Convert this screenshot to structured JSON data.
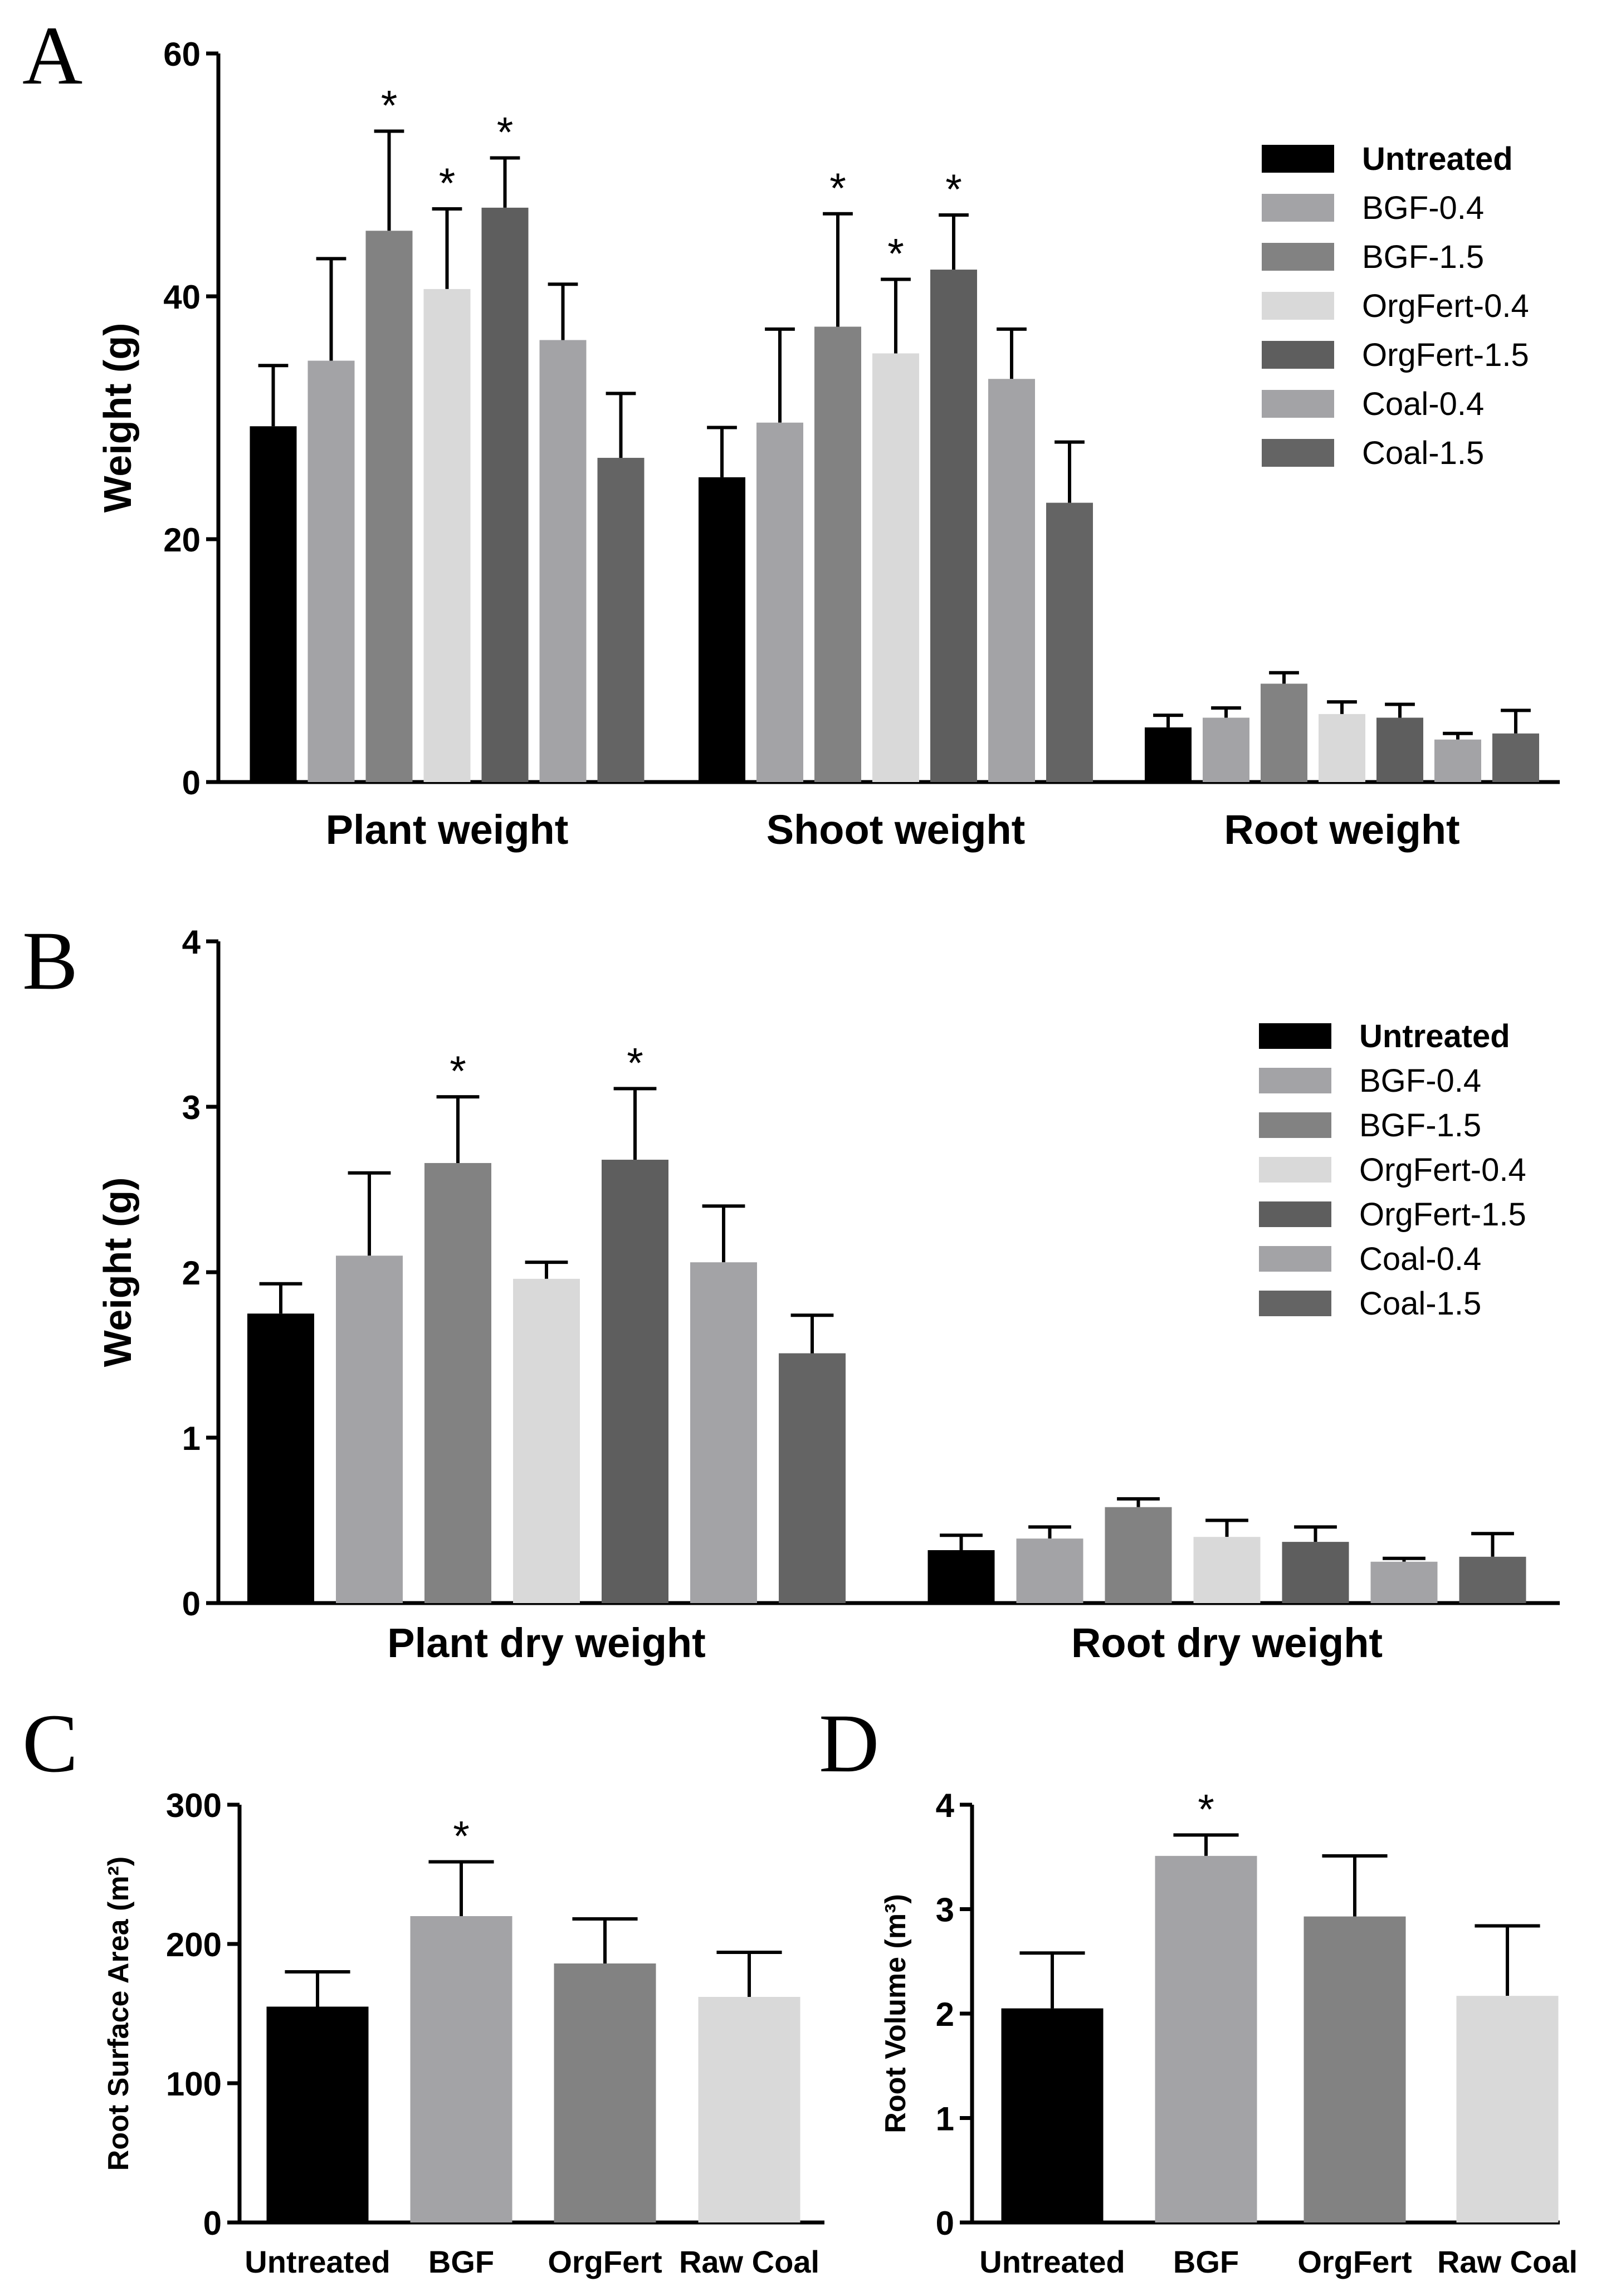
{
  "colors": {
    "Untreated": "#000000",
    "BGF-0.4": "#a3a3a6",
    "BGF-1.5": "#828282",
    "OrgFert-0.4": "#d9d9d9",
    "OrgFert-1.5": "#5e5e5e",
    "Coal-0.4": "#a3a3a6",
    "Coal-1.5": "#646464",
    "BGF": "#a3a3a6",
    "OrgFert": "#828282",
    "Raw Coal": "#d9d9d9"
  },
  "chart_data": [
    {
      "panel": "A",
      "type": "bar",
      "ylabel": "Weight (g)",
      "ylim": [
        0,
        60
      ],
      "yticks": [
        0,
        20,
        40,
        60
      ],
      "categories": [
        "Plant weight",
        "Shoot weight",
        "Root weight"
      ],
      "legend": [
        "Untreated",
        "BGF-0.4",
        "BGF-1.5",
        "OrgFert-0.4",
        "OrgFert-1.5",
        "Coal-0.4",
        "Coal-1.5"
      ],
      "legend_bold": [
        "Untreated"
      ],
      "legend_position": "top-right",
      "grid": false,
      "series": [
        {
          "name": "Untreated",
          "values": [
            29.3,
            25.1,
            4.5
          ],
          "errors": [
            5.0,
            4.1,
            1.0
          ],
          "significant": [
            false,
            false,
            false
          ]
        },
        {
          "name": "BGF-0.4",
          "values": [
            34.7,
            29.6,
            5.3
          ],
          "errors": [
            8.4,
            7.7,
            0.8
          ],
          "significant": [
            false,
            false,
            false
          ]
        },
        {
          "name": "BGF-1.5",
          "values": [
            45.4,
            37.5,
            8.1
          ],
          "errors": [
            8.2,
            9.3,
            0.9
          ],
          "significant": [
            true,
            true,
            false
          ]
        },
        {
          "name": "OrgFert-0.4",
          "values": [
            40.6,
            35.3,
            5.6
          ],
          "errors": [
            6.6,
            6.1,
            1.0
          ],
          "significant": [
            true,
            true,
            false
          ]
        },
        {
          "name": "OrgFert-1.5",
          "values": [
            47.3,
            42.2,
            5.3
          ],
          "errors": [
            4.1,
            4.5,
            1.1
          ],
          "significant": [
            true,
            true,
            false
          ]
        },
        {
          "name": "Coal-0.4",
          "values": [
            36.4,
            33.2,
            3.5
          ],
          "errors": [
            4.6,
            4.1,
            0.5
          ],
          "significant": [
            false,
            false,
            false
          ]
        },
        {
          "name": "Coal-1.5",
          "values": [
            26.7,
            23.0,
            4.0
          ],
          "errors": [
            5.3,
            5.0,
            1.9
          ],
          "significant": [
            false,
            false,
            false
          ]
        }
      ]
    },
    {
      "panel": "B",
      "type": "bar",
      "ylabel": "Weight (g)",
      "ylim": [
        0,
        4
      ],
      "yticks": [
        0,
        1,
        2,
        3,
        4
      ],
      "categories": [
        "Plant dry weight",
        "Root dry weight"
      ],
      "legend": [
        "Untreated",
        "BGF-0.4",
        "BGF-1.5",
        "OrgFert-0.4",
        "OrgFert-1.5",
        "Coal-0.4",
        "Coal-1.5"
      ],
      "legend_bold": [
        "Untreated"
      ],
      "legend_position": "top-right",
      "grid": false,
      "series": [
        {
          "name": "Untreated",
          "values": [
            1.75,
            0.32
          ],
          "errors": [
            0.18,
            0.09
          ],
          "significant": [
            false,
            false
          ]
        },
        {
          "name": "BGF-0.4",
          "values": [
            2.1,
            0.39
          ],
          "errors": [
            0.5,
            0.07
          ],
          "significant": [
            false,
            false
          ]
        },
        {
          "name": "BGF-1.5",
          "values": [
            2.66,
            0.58
          ],
          "errors": [
            0.4,
            0.05
          ],
          "significant": [
            true,
            false
          ]
        },
        {
          "name": "OrgFert-0.4",
          "values": [
            1.96,
            0.4
          ],
          "errors": [
            0.1,
            0.1
          ],
          "significant": [
            false,
            false
          ]
        },
        {
          "name": "OrgFert-1.5",
          "values": [
            2.68,
            0.37
          ],
          "errors": [
            0.43,
            0.09
          ],
          "significant": [
            true,
            false
          ]
        },
        {
          "name": "Coal-0.4",
          "values": [
            2.06,
            0.25
          ],
          "errors": [
            0.34,
            0.02
          ],
          "significant": [
            false,
            false
          ]
        },
        {
          "name": "Coal-1.5",
          "values": [
            1.51,
            0.28
          ],
          "errors": [
            0.23,
            0.14
          ],
          "significant": [
            false,
            false
          ]
        }
      ]
    },
    {
      "panel": "C",
      "type": "bar",
      "ylabel": "Root Surface Area (m²)",
      "ylim": [
        0,
        300
      ],
      "yticks": [
        0,
        100,
        200,
        300
      ],
      "categories": [
        "Untreated",
        "BGF",
        "OrgFert",
        "Raw Coal"
      ],
      "grid": false,
      "series": [
        {
          "values": [
            155,
            220,
            186,
            162
          ],
          "errors": [
            25,
            39,
            32,
            32
          ],
          "significant": [
            false,
            true,
            false,
            false
          ]
        }
      ]
    },
    {
      "panel": "D",
      "type": "bar",
      "ylabel": "Root Volume (m³)",
      "ylim": [
        0,
        4
      ],
      "yticks": [
        0,
        1,
        2,
        3,
        4
      ],
      "categories": [
        "Untreated",
        "BGF",
        "OrgFert",
        "Raw Coal"
      ],
      "grid": false,
      "series": [
        {
          "values": [
            2.05,
            3.51,
            2.93,
            2.17
          ],
          "errors": [
            0.53,
            0.2,
            0.58,
            0.67
          ],
          "significant": [
            false,
            true,
            false,
            false
          ]
        }
      ]
    }
  ]
}
